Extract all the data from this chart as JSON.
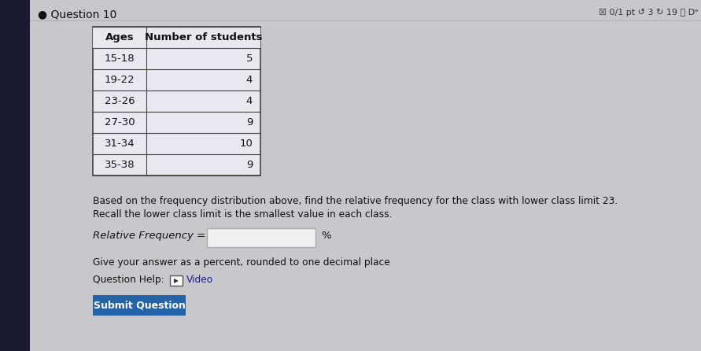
{
  "title": "Question 10",
  "bullet": "●",
  "top_right_text": "☒ 0/1 pt ↺ 3 ↻ 19 ⓘ Dᵉ",
  "table_headers": [
    "Ages",
    "Number of students"
  ],
  "table_rows": [
    [
      "15-18",
      "5"
    ],
    [
      "19-22",
      "4"
    ],
    [
      "23-26",
      "4"
    ],
    [
      "27-30",
      "9"
    ],
    [
      "31-34",
      "10"
    ],
    [
      "35-38",
      "9"
    ]
  ],
  "paragraph1": "Based on the frequency distribution above, find the relative frequency for the class with lower class limit 23.",
  "paragraph2": "Recall the lower class limit is the smallest value in each class.",
  "rel_freq_label": "Relative Frequency =",
  "percent_sign": "%",
  "give_answer_text": "Give your answer as a percent, rounded to one decimal place",
  "question_help_prefix": "Question Help:",
  "video_icon_char": "▶",
  "video_label": "Video",
  "submit_button_text": "Submit Question",
  "left_bar_color": "#1a1a2e",
  "bg_color": "#c8c8cc",
  "content_bg_color": "#e0e0e6",
  "table_border_color": "#444444",
  "table_header_bg": "#e8e8ee",
  "table_row_bg": "#e8e8f0",
  "submit_btn_color": "#2563a8",
  "submit_btn_text_color": "#ffffff",
  "title_color": "#111111",
  "body_text_color": "#111111",
  "input_box_color": "#f0f0f0",
  "input_border_color": "#aaaaaa",
  "video_icon_border": "#555555",
  "video_text_color": "#1a1a99",
  "top_right_color": "#333333",
  "left_bar_width": 38
}
